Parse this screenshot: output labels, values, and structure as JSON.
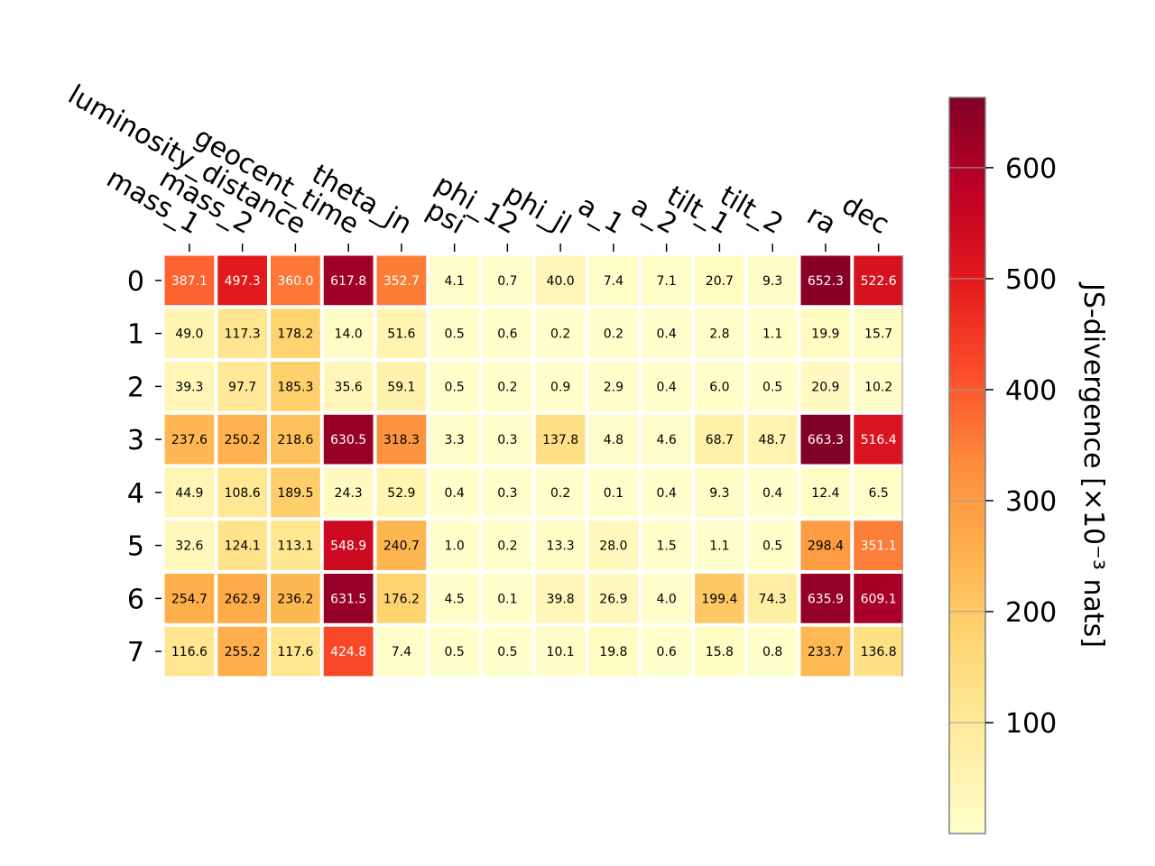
{
  "chart_data": {
    "type": "heatmap",
    "x_labels": [
      "mass_1",
      "mass_2",
      "luminosity_distance",
      "geocent_time",
      "theta_jn",
      "psi",
      "phi_12",
      "phi_jl",
      "a_1",
      "a_2",
      "tilt_1",
      "tilt_2",
      "ra",
      "dec"
    ],
    "y_labels": [
      "0",
      "1",
      "2",
      "3",
      "4",
      "5",
      "6",
      "7"
    ],
    "values": [
      [
        387.1,
        497.3,
        360.0,
        617.8,
        352.7,
        4.1,
        0.7,
        40.0,
        7.4,
        7.1,
        20.7,
        9.3,
        652.3,
        522.6
      ],
      [
        49.0,
        117.3,
        178.2,
        14.0,
        51.6,
        0.5,
        0.6,
        0.2,
        0.2,
        0.4,
        2.8,
        1.1,
        19.9,
        15.7
      ],
      [
        39.3,
        97.7,
        185.3,
        35.6,
        59.1,
        0.5,
        0.2,
        0.9,
        2.9,
        0.4,
        6.0,
        0.5,
        20.9,
        10.2
      ],
      [
        237.6,
        250.2,
        218.6,
        630.5,
        318.3,
        3.3,
        0.3,
        137.8,
        4.8,
        4.6,
        68.7,
        48.7,
        663.3,
        516.4
      ],
      [
        44.9,
        108.6,
        189.5,
        24.3,
        52.9,
        0.4,
        0.3,
        0.2,
        0.1,
        0.4,
        9.3,
        0.4,
        12.4,
        6.5
      ],
      [
        32.6,
        124.1,
        113.1,
        548.9,
        240.7,
        1.0,
        0.2,
        13.3,
        28.0,
        1.5,
        1.1,
        0.5,
        298.4,
        351.1
      ],
      [
        254.7,
        262.9,
        236.2,
        631.5,
        176.2,
        4.5,
        0.1,
        39.8,
        26.9,
        4.0,
        199.4,
        74.3,
        635.9,
        609.1
      ],
      [
        116.6,
        255.2,
        117.6,
        424.8,
        7.4,
        0.5,
        0.5,
        10.1,
        19.8,
        0.6,
        15.8,
        0.8,
        233.7,
        136.8
      ]
    ],
    "colorbar": {
      "label": "JS-divergence [×10⁻³ nats]",
      "ticks": [
        100,
        200,
        300,
        400,
        500,
        600
      ],
      "range": [
        0.1,
        663.3
      ],
      "colormap": "YlOrRd"
    }
  }
}
